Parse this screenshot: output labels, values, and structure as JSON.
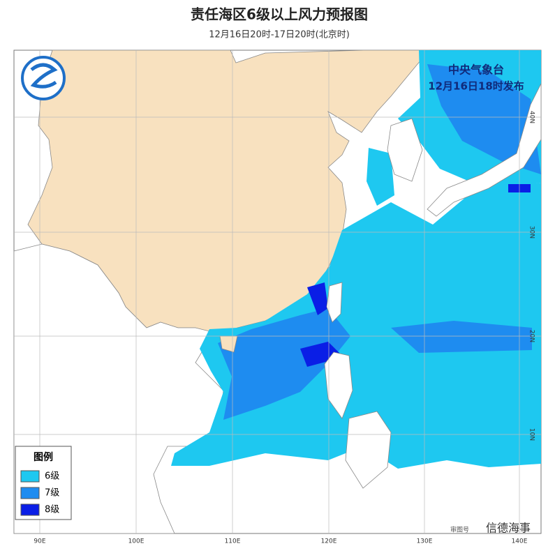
{
  "header": {
    "title": "责任海区6级以上风力预报图",
    "subtitle": "12月16日20时-17日20时(北京时)"
  },
  "issuer": {
    "agency": "中央气象台",
    "time": "12月16日18时发布"
  },
  "map": {
    "lon_labels": [
      "90E",
      "100E",
      "110E",
      "120E",
      "130E",
      "140E"
    ],
    "lat_labels": [
      "40N",
      "30N",
      "20N",
      "10N"
    ]
  },
  "legend": {
    "title": "图例",
    "items": [
      {
        "label": "6级",
        "color": "#1ec8f0"
      },
      {
        "label": "7级",
        "color": "#1e8cf0"
      },
      {
        "label": "8级",
        "color": "#0a1ee6"
      }
    ]
  },
  "footer": {
    "approval": "审图号",
    "watermark": "信德海事"
  }
}
